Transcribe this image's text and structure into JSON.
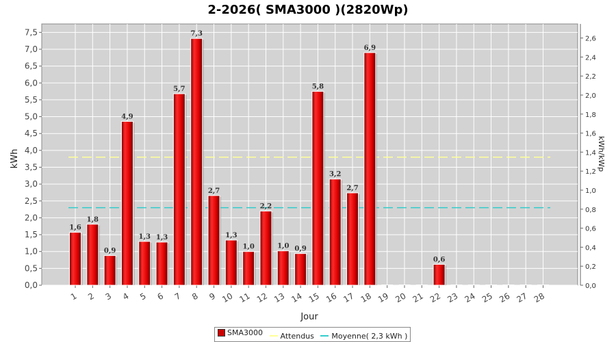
{
  "chart_data": {
    "type": "bar",
    "title": "2-2026( SMA3000 )(2820Wp)",
    "xlabel": "Jour",
    "ylabel": "kWh",
    "ylabel_right": "kWh/kWp",
    "ylim": [
      0,
      7.75
    ],
    "ylim_right": [
      0,
      2.748
    ],
    "y_ticks": [
      "0,0",
      "0,5",
      "1,0",
      "1,5",
      "2,0",
      "2,5",
      "3,0",
      "3,5",
      "4,0",
      "4,5",
      "5,0",
      "5,5",
      "6,0",
      "6,5",
      "7,0",
      "7,5"
    ],
    "y_ticks_right": [
      "0,0",
      "0,2",
      "0,4",
      "0,6",
      "0,8",
      "1,0",
      "1,2",
      "1,4",
      "1,6",
      "1,8",
      "2,0",
      "2,2",
      "2,4",
      "2,6"
    ],
    "categories": [
      "1",
      "2",
      "3",
      "4",
      "5",
      "6",
      "7",
      "8",
      "9",
      "10",
      "11",
      "12",
      "13",
      "14",
      "15",
      "16",
      "17",
      "18",
      "19",
      "20",
      "21",
      "22",
      "23",
      "24",
      "25",
      "26",
      "27",
      "28"
    ],
    "series": [
      {
        "name": "SMA3000",
        "color": "#cc0000",
        "values": [
          1.57,
          1.81,
          0.88,
          4.86,
          1.3,
          1.28,
          5.68,
          7.32,
          2.66,
          1.34,
          1.0,
          2.2,
          1.02,
          0.94,
          5.75,
          3.15,
          2.74,
          6.9,
          0,
          0,
          0,
          0.62,
          0,
          0,
          0,
          0,
          0,
          0
        ],
        "labels": [
          "1,6",
          "1,8",
          "0,9",
          "4,9",
          "1,3",
          "1,3",
          "5,7",
          "7,3",
          "2,7",
          "1,3",
          "1,0",
          "2,2",
          "1,0",
          "0,9",
          "5,8",
          "3,2",
          "2,7",
          "6,9",
          "",
          "",
          "",
          "0,6",
          "",
          "",
          "",
          "",
          "",
          ""
        ]
      }
    ],
    "reference_lines": [
      {
        "name": "Attendus",
        "value": 3.8,
        "color": "#ffff99"
      },
      {
        "name": "Moyenne( 2,3 kWh )",
        "value": 2.3,
        "color": "#33cccc"
      }
    ],
    "grid": true,
    "legend_position": "bottom-center",
    "plot_background": "#d3d3d3"
  }
}
